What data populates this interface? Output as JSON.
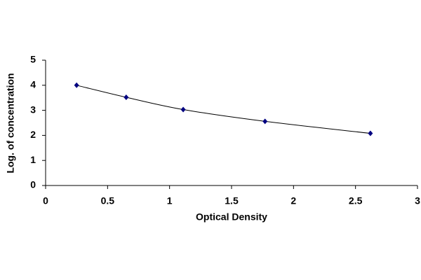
{
  "chart_data": {
    "type": "scatter",
    "line": "smooth",
    "marker": "diamond",
    "x_label": "Optical Density",
    "y_label": "Log. of concentration",
    "x": [
      0.25,
      0.65,
      1.11,
      1.77,
      2.62
    ],
    "values": [
      4.0,
      3.52,
      3.03,
      2.56,
      2.08
    ],
    "color": "#000080",
    "line_color": "#000000",
    "xlim": [
      0,
      3
    ],
    "xticks": [
      0,
      0.5,
      1,
      1.5,
      2,
      2.5,
      3
    ],
    "ylim": [
      0,
      5
    ],
    "yticks": [
      0,
      1,
      2,
      3,
      4,
      5
    ],
    "grid": false
  }
}
